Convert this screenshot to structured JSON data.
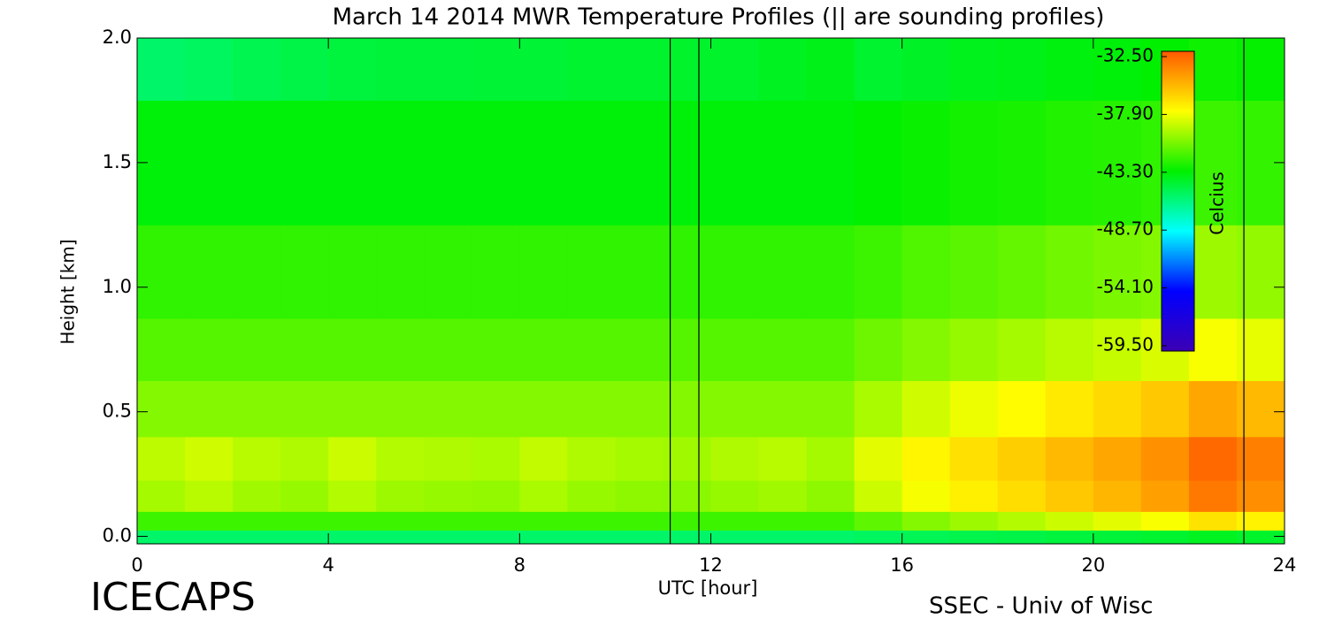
{
  "chart_data": {
    "type": "heatmap",
    "title": "March 14 2014 MWR Temperature Profiles (|| are sounding profiles)",
    "x_label": "UTC [hour]",
    "y_label": "Height [km]",
    "colorbar_label": "Celcius",
    "footer_left": "ICECAPS",
    "footer_right": "SSEC - Univ of Wisc",
    "x": [
      0.5,
      1.5,
      2.5,
      3.5,
      4.5,
      5.5,
      6.5,
      7.5,
      8.5,
      9.5,
      10.5,
      11.5,
      12.5,
      13.5,
      14.5,
      15.5,
      16.5,
      17.5,
      18.5,
      19.5,
      20.5,
      21.5,
      22.5,
      23.5
    ],
    "y": [
      0.0,
      0.05,
      0.15,
      0.3,
      0.5,
      0.75,
      1.0,
      1.5,
      2.0
    ],
    "values": [
      [
        -45.5,
        -45.5,
        -45.5,
        -45.5,
        -45.5,
        -45.5,
        -45.5,
        -45.5,
        -45.5,
        -45.5,
        -45.5,
        -45.5,
        -45.5,
        -45.5,
        -45.5,
        -45.3,
        -45.1,
        -44.9,
        -44.8,
        -44.6,
        -44.5,
        -44.3,
        -44.0,
        -44.2
      ],
      [
        -42.0,
        -42.0,
        -42.0,
        -42.0,
        -42.0,
        -42.0,
        -42.0,
        -42.0,
        -42.0,
        -42.0,
        -42.0,
        -42.0,
        -42.0,
        -42.0,
        -42.0,
        -41.3,
        -40.5,
        -40.0,
        -39.5,
        -39.0,
        -38.5,
        -38.0,
        -37.0,
        -37.5
      ],
      [
        -39.8,
        -39.4,
        -39.9,
        -40.1,
        -39.5,
        -40.0,
        -40.1,
        -40.2,
        -39.7,
        -40.1,
        -40.3,
        -40.4,
        -40.1,
        -39.9,
        -40.3,
        -39.0,
        -38.1,
        -37.4,
        -36.8,
        -36.1,
        -35.5,
        -34.8,
        -33.5,
        -34.2
      ],
      [
        -39.3,
        -38.9,
        -39.4,
        -39.6,
        -39.0,
        -39.5,
        -39.6,
        -39.7,
        -39.2,
        -39.6,
        -39.8,
        -39.9,
        -39.6,
        -39.4,
        -39.8,
        -38.5,
        -37.6,
        -36.9,
        -36.3,
        -35.6,
        -35.0,
        -34.3,
        -33.0,
        -33.7
      ],
      [
        -40.5,
        -40.5,
        -40.5,
        -40.5,
        -40.5,
        -40.5,
        -40.5,
        -40.5,
        -40.5,
        -40.5,
        -40.5,
        -40.5,
        -40.5,
        -40.5,
        -40.5,
        -39.7,
        -38.9,
        -38.3,
        -37.8,
        -37.2,
        -36.7,
        -36.1,
        -35.0,
        -35.6
      ],
      [
        -41.5,
        -41.5,
        -41.5,
        -41.5,
        -41.5,
        -41.5,
        -41.5,
        -41.5,
        -41.5,
        -41.5,
        -41.5,
        -41.5,
        -41.5,
        -41.5,
        -41.5,
        -41.0,
        -40.5,
        -40.1,
        -39.8,
        -39.4,
        -39.1,
        -38.7,
        -38.0,
        -38.4
      ],
      [
        -42.3,
        -42.3,
        -42.3,
        -42.3,
        -42.3,
        -42.3,
        -42.3,
        -42.3,
        -42.3,
        -42.3,
        -42.3,
        -42.3,
        -42.3,
        -42.3,
        -42.3,
        -42.0,
        -41.6,
        -41.4,
        -41.2,
        -40.9,
        -40.7,
        -40.5,
        -40.0,
        -40.2
      ],
      [
        -43.5,
        -43.5,
        -43.5,
        -43.5,
        -43.5,
        -43.5,
        -43.5,
        -43.5,
        -43.5,
        -43.5,
        -43.5,
        -43.5,
        -43.5,
        -43.5,
        -43.5,
        -43.3,
        -43.1,
        -42.9,
        -42.8,
        -42.6,
        -42.5,
        -42.3,
        -42.0,
        -42.2
      ],
      [
        -45.5,
        -45.3,
        -45.0,
        -44.8,
        -44.6,
        -44.5,
        -44.5,
        -44.4,
        -44.4,
        -44.3,
        -44.3,
        -44.2,
        -44.2,
        -44.0,
        -43.8,
        -44.3,
        -44.1,
        -43.9,
        -43.8,
        -43.6,
        -43.5,
        -43.3,
        -43.0,
        -43.2
      ]
    ],
    "soundings": [
      11.15,
      11.75,
      23.15
    ],
    "xlim": [
      0,
      24
    ],
    "xticks": [
      0,
      4,
      8,
      12,
      16,
      20,
      24
    ],
    "ylim": [
      -0.03,
      2.0
    ],
    "yticks": [
      {
        "value": 0.0,
        "label": "0.0"
      },
      {
        "value": 0.5,
        "label": "0.5"
      },
      {
        "value": 1.0,
        "label": "1.0"
      },
      {
        "value": 1.5,
        "label": "1.5"
      },
      {
        "value": 2.0,
        "label": "2.0"
      }
    ],
    "clim": [
      -59.5,
      -32.5
    ],
    "cticks": [
      {
        "value": -32.5,
        "label": "-32.50"
      },
      {
        "value": -37.9,
        "label": "-37.90"
      },
      {
        "value": -43.3,
        "label": "-43.30"
      },
      {
        "value": -48.7,
        "label": "-48.70"
      },
      {
        "value": -54.1,
        "label": "-54.10"
      },
      {
        "value": -59.5,
        "label": "-59.50"
      }
    ],
    "colormap": [
      "#3c00b4",
      "#0000ff",
      "#00ffff",
      "#00f000",
      "#ffff00",
      "#ff5a00"
    ]
  }
}
